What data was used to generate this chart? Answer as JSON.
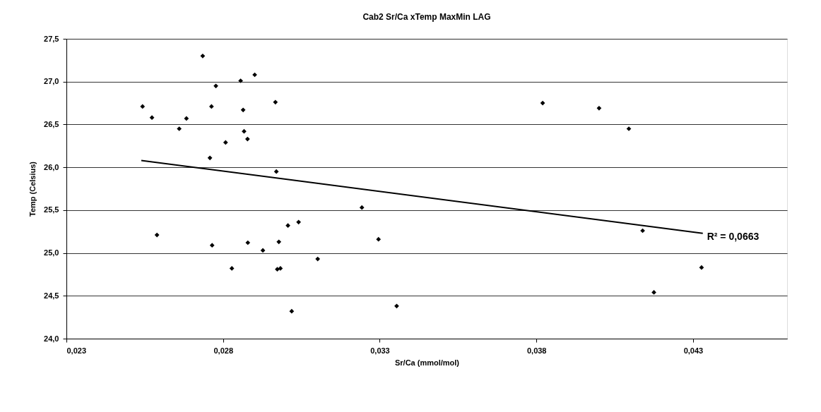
{
  "chart_data": {
    "type": "scatter",
    "title": "Cab2 Sr/Ca xTemp MaxMin LAG",
    "xlabel": "Sr/Ca (mmol/mol)",
    "ylabel": "Temp (Celsius)",
    "xlim": [
      0.023,
      0.046
    ],
    "ylim": [
      24.0,
      27.5
    ],
    "xticks": [
      {
        "value": 0.023,
        "label": "0,023"
      },
      {
        "value": 0.028,
        "label": "0,028"
      },
      {
        "value": 0.033,
        "label": "0,033"
      },
      {
        "value": 0.038,
        "label": "0,038"
      },
      {
        "value": 0.043,
        "label": "0,043"
      }
    ],
    "yticks": [
      {
        "value": 24.0,
        "label": "24,0"
      },
      {
        "value": 24.5,
        "label": "24,5"
      },
      {
        "value": 25.0,
        "label": "25,0"
      },
      {
        "value": 25.5,
        "label": "25,5"
      },
      {
        "value": 26.0,
        "label": "26,0"
      },
      {
        "value": 26.5,
        "label": "26,5"
      },
      {
        "value": 27.0,
        "label": "27,0"
      },
      {
        "value": 27.5,
        "label": "27,5"
      }
    ],
    "grid": "y",
    "marker": "diamond",
    "series": [
      {
        "color": "#000000",
        "x": [
          0.02543,
          0.02573,
          0.0266,
          0.02683,
          0.02735,
          0.02763,
          0.02777,
          0.02758,
          0.02808,
          0.02856,
          0.02864,
          0.02867,
          0.02878,
          0.02901,
          0.02967,
          0.0297,
          0.03243,
          0.02589,
          0.02765,
          0.02828,
          0.02879,
          0.02927,
          0.02973,
          0.02983,
          0.02978,
          0.03007,
          0.03041,
          0.03019,
          0.03102,
          0.03296,
          0.03354,
          0.0382,
          0.04,
          0.04095,
          0.04139,
          0.04175,
          0.04327
        ],
        "values": [
          26.71,
          26.58,
          26.45,
          26.57,
          27.3,
          26.71,
          26.95,
          26.11,
          26.29,
          27.01,
          26.67,
          26.42,
          26.33,
          27.08,
          26.76,
          25.95,
          25.53,
          25.21,
          25.09,
          24.82,
          25.12,
          25.03,
          24.81,
          24.82,
          25.13,
          25.32,
          25.36,
          24.32,
          24.93,
          25.16,
          24.38,
          26.75,
          26.69,
          26.45,
          25.26,
          24.54,
          24.83
        ]
      },
      {
        "type": "line",
        "color": "#000000",
        "line_style": "solid",
        "marker": "none",
        "x": [
          0.02539,
          0.04331
        ],
        "values": [
          26.08,
          25.23
        ]
      }
    ],
    "annotations": [
      {
        "text": "R² = 0,0663",
        "x": 0.04331,
        "y": 25.23
      }
    ]
  }
}
